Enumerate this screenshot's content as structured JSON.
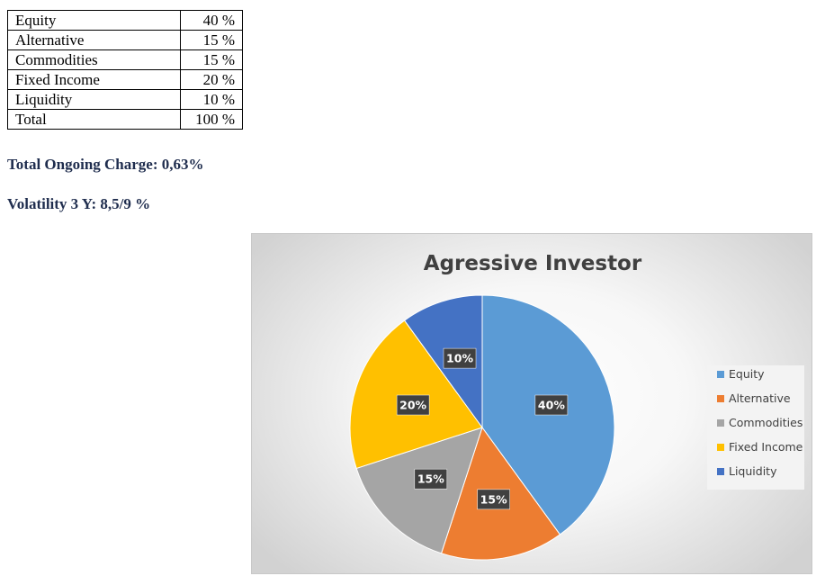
{
  "allocation_table": {
    "rows": [
      {
        "name": "Equity",
        "value": "40 %"
      },
      {
        "name": "Alternative",
        "value": "15 %"
      },
      {
        "name": "Commodities",
        "value": "15 %"
      },
      {
        "name": "Fixed Income",
        "value": "20 %"
      },
      {
        "name": "Liquidity",
        "value": "10 %"
      },
      {
        "name": "Total",
        "value": "100 %"
      }
    ]
  },
  "metrics": {
    "ongoing_charge": "Total Ongoing Charge: 0,63%",
    "volatility": "Volatility 3 Y: 8,5/9 %"
  },
  "chart_data": {
    "type": "pie",
    "title": "Agressive Investor",
    "categories": [
      "Equity",
      "Alternative",
      "Commodities",
      "Fixed Income",
      "Liquidity"
    ],
    "values": [
      40,
      15,
      15,
      20,
      10
    ],
    "labels": [
      "40%",
      "15%",
      "15%",
      "20%",
      "10%"
    ],
    "colors": [
      "#5b9bd5",
      "#ed7d31",
      "#a5a5a5",
      "#ffc000",
      "#4472c4"
    ],
    "legend_position": "right",
    "start_angle_deg": 0,
    "direction": "clockwise"
  }
}
